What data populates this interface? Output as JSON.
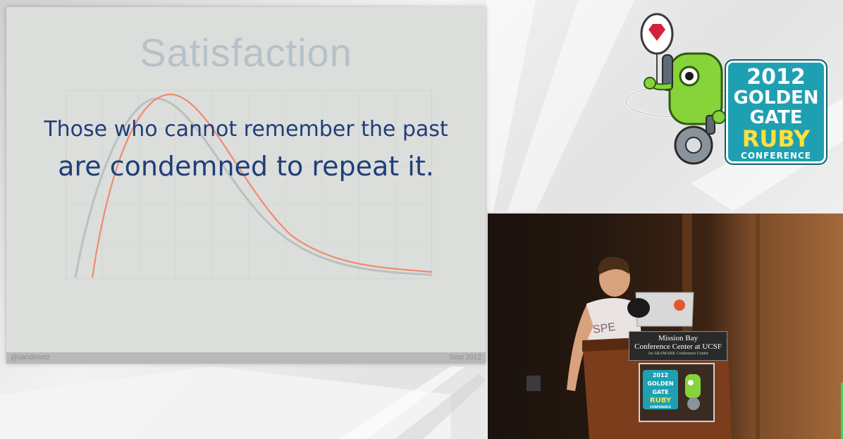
{
  "slide": {
    "title": "Satisfaction",
    "quote_line1": "Those who cannot remember the past",
    "quote_line2": "are condemned to repeat it.",
    "footer_left": "@sandimetz",
    "footer_right": "Sept 2012"
  },
  "logo": {
    "year": "2012",
    "line2": "GOLDEN",
    "line3_gate": "GATE",
    "line4_ruby": "RUBY",
    "line5": "CONFERENCE"
  },
  "podium": {
    "sign_line1": "Mission Bay",
    "sign_line2": "Conference Center at UCSF",
    "sign_line3": "An ARAMARK Conference Center",
    "logo_year": "2012",
    "logo_golden": "GOLDEN",
    "logo_gate": "GATE",
    "logo_ruby": "RUBY",
    "logo_conf": "CONFERENCE"
  },
  "colors": {
    "slide_bg": "#dcdedb",
    "quote": "#1f3f7a",
    "title": "#b6c1c9",
    "logo_teal": "#1fa0b2",
    "logo_yellow": "#ffe13c",
    "robot_green": "#86d33a",
    "curve_red": "#f08a70",
    "curve_gray": "#b9c1bf"
  }
}
